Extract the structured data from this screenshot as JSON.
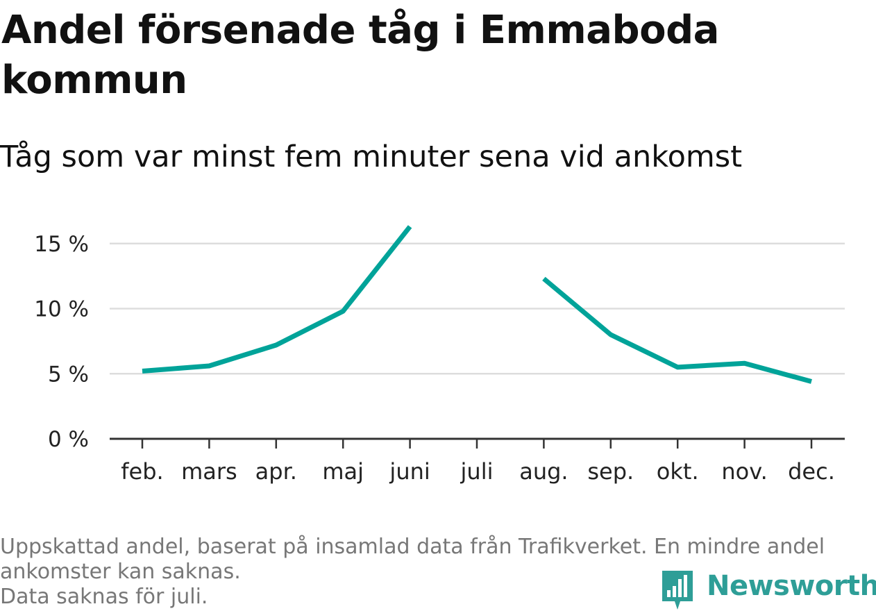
{
  "header": {
    "title": "Andel försenade tåg i Emmaboda kommun",
    "subtitle": "Tåg som var minst fem minuter sena vid ankomst"
  },
  "footer": {
    "note_line1": "Uppskattad andel, baserat på insamlad data från Trafikverket. En mindre andel",
    "note_line2": "ankomster kan saknas.",
    "note_line3": "Data saknas för juli.",
    "brand": "Newsworthy"
  },
  "colors": {
    "line": "#00a399",
    "grid": "#dddddd",
    "axis": "#333333",
    "brand": "#2e9e97"
  },
  "icons": {
    "brand_logo": "bar-chart-speech-bubble-icon"
  },
  "chart_data": {
    "type": "line",
    "title": "Andel försenade tåg i Emmaboda kommun",
    "subtitle": "Tåg som var minst fem minuter sena vid ankomst",
    "categories": [
      "feb.",
      "mars",
      "apr.",
      "maj",
      "juni",
      "juli",
      "aug.",
      "sep.",
      "okt.",
      "nov.",
      "dec."
    ],
    "series": [
      {
        "values": [
          5.2,
          5.6,
          7.2,
          9.8,
          16.3,
          null,
          12.3,
          8.0,
          5.5,
          5.8,
          4.4
        ]
      }
    ],
    "ylim": [
      0,
      16.5
    ],
    "yticks": [
      0,
      5,
      10,
      15
    ],
    "ytick_labels": [
      "0 %",
      "5 %",
      "10 %",
      "15 %"
    ],
    "grid": true,
    "legend": "none"
  }
}
